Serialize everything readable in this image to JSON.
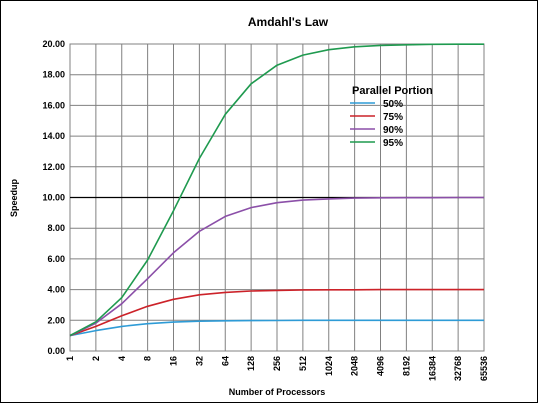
{
  "chart_data": {
    "type": "line",
    "title": "Amdahl's Law",
    "xlabel": "Number of Processors",
    "ylabel": "Speedup",
    "x": [
      "1",
      "2",
      "4",
      "8",
      "16",
      "32",
      "64",
      "128",
      "256",
      "512",
      "1024",
      "2048",
      "4096",
      "8192",
      "16384",
      "32768",
      "65536"
    ],
    "ylim": [
      0,
      20
    ],
    "yticks": [
      "0.00",
      "2.00",
      "4.00",
      "6.00",
      "8.00",
      "10.00",
      "12.00",
      "14.00",
      "16.00",
      "18.00",
      "20.00"
    ],
    "grid": true,
    "legend": {
      "title": "Parallel Portion",
      "placement": "top-right"
    },
    "series": [
      {
        "name": "50%",
        "color": "#2e9bd6",
        "values": [
          1.0,
          1.33,
          1.6,
          1.78,
          1.88,
          1.94,
          1.97,
          1.98,
          1.99,
          2.0,
          2.0,
          2.0,
          2.0,
          2.0,
          2.0,
          2.0,
          2.0
        ]
      },
      {
        "name": "75%",
        "color": "#cc2229",
        "values": [
          1.0,
          1.6,
          2.29,
          2.91,
          3.37,
          3.66,
          3.82,
          3.91,
          3.95,
          3.98,
          3.99,
          3.99,
          4.0,
          4.0,
          4.0,
          4.0,
          4.0
        ]
      },
      {
        "name": "90%",
        "color": "#8b4fa8",
        "values": [
          1.0,
          1.82,
          3.08,
          4.71,
          6.4,
          7.8,
          8.77,
          9.34,
          9.66,
          9.83,
          9.91,
          9.96,
          9.98,
          9.99,
          9.99,
          10.0,
          10.0
        ]
      },
      {
        "name": "95%",
        "color": "#1f9a4f",
        "values": [
          1.0,
          1.9,
          3.48,
          5.93,
          9.14,
          12.55,
          15.42,
          17.41,
          18.62,
          19.28,
          19.63,
          19.82,
          19.91,
          19.95,
          19.98,
          19.99,
          19.99
        ]
      }
    ]
  }
}
